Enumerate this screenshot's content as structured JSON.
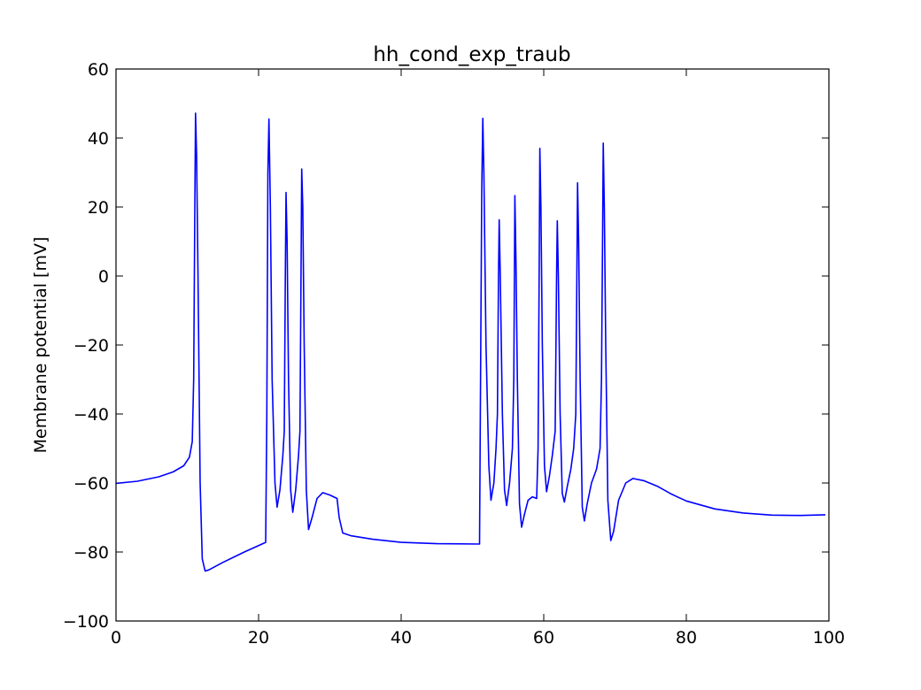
{
  "chart_data": {
    "type": "line",
    "title": "hh_cond_exp_traub",
    "xlabel": "",
    "ylabel": "Membrane potential [mV]",
    "xlim": [
      0,
      100
    ],
    "ylim": [
      -100,
      60
    ],
    "xticks": [
      0,
      20,
      40,
      60,
      80,
      100
    ],
    "yticks": [
      -100,
      -80,
      -60,
      -40,
      -20,
      0,
      20,
      40,
      60
    ],
    "grid": false,
    "line_color": "#0000ff",
    "series": [
      {
        "points": [
          [
            0,
            -60.1
          ],
          [
            3,
            -59.5
          ],
          [
            6,
            -58.2
          ],
          [
            8,
            -56.8
          ],
          [
            9.5,
            -55.0
          ],
          [
            10.3,
            -52.5
          ],
          [
            10.7,
            -48
          ],
          [
            10.9,
            -30
          ],
          [
            11.05,
            20
          ],
          [
            11.15,
            47.2
          ],
          [
            11.3,
            35
          ],
          [
            11.5,
            0
          ],
          [
            11.8,
            -60
          ],
          [
            12.1,
            -82
          ],
          [
            12.5,
            -85.5
          ],
          [
            13,
            -85.2
          ],
          [
            15,
            -83
          ],
          [
            18,
            -80
          ],
          [
            21,
            -77.2
          ],
          [
            21.15,
            -40
          ],
          [
            21.3,
            30
          ],
          [
            21.45,
            45.5
          ],
          [
            21.65,
            20
          ],
          [
            21.9,
            -30
          ],
          [
            22.3,
            -60
          ],
          [
            22.6,
            -67
          ],
          [
            23.0,
            -62
          ],
          [
            23.4,
            -52
          ],
          [
            23.6,
            -45
          ],
          [
            23.75,
            0
          ],
          [
            23.85,
            24.2
          ],
          [
            24.0,
            10
          ],
          [
            24.2,
            -30
          ],
          [
            24.5,
            -62
          ],
          [
            24.8,
            -68.5
          ],
          [
            25.2,
            -62
          ],
          [
            25.6,
            -52
          ],
          [
            25.8,
            -45
          ],
          [
            25.95,
            0
          ],
          [
            26.05,
            31
          ],
          [
            26.2,
            20
          ],
          [
            26.4,
            -20
          ],
          [
            26.7,
            -62
          ],
          [
            27.0,
            -73.5
          ],
          [
            27.5,
            -70
          ],
          [
            28.2,
            -64.5
          ],
          [
            29,
            -62.8
          ],
          [
            30,
            -63.5
          ],
          [
            31.0,
            -64.5
          ],
          [
            31.3,
            -70
          ],
          [
            31.8,
            -74.5
          ],
          [
            33,
            -75.3
          ],
          [
            36,
            -76.3
          ],
          [
            40,
            -77.2
          ],
          [
            45,
            -77.6
          ],
          [
            51,
            -77.7
          ],
          [
            51.1,
            -40
          ],
          [
            51.3,
            25
          ],
          [
            51.45,
            45.7
          ],
          [
            51.6,
            30
          ],
          [
            51.9,
            -20
          ],
          [
            52.3,
            -55
          ],
          [
            52.6,
            -65
          ],
          [
            53.0,
            -60
          ],
          [
            53.3,
            -50
          ],
          [
            53.5,
            -40
          ],
          [
            53.65,
            0
          ],
          [
            53.75,
            16.3
          ],
          [
            53.9,
            0
          ],
          [
            54.2,
            -40
          ],
          [
            54.5,
            -62
          ],
          [
            54.8,
            -66.5
          ],
          [
            55.2,
            -60
          ],
          [
            55.6,
            -50
          ],
          [
            55.8,
            -30
          ],
          [
            55.95,
            23.3
          ],
          [
            56.1,
            5
          ],
          [
            56.3,
            -30
          ],
          [
            56.6,
            -66
          ],
          [
            56.9,
            -72.8
          ],
          [
            57.3,
            -69
          ],
          [
            57.8,
            -65
          ],
          [
            58.4,
            -64
          ],
          [
            59.0,
            -64.5
          ],
          [
            59.2,
            -50
          ],
          [
            59.35,
            0
          ],
          [
            59.45,
            37
          ],
          [
            59.6,
            20
          ],
          [
            59.8,
            -20
          ],
          [
            60.1,
            -55
          ],
          [
            60.4,
            -62.5
          ],
          [
            60.8,
            -58
          ],
          [
            61.2,
            -52
          ],
          [
            61.6,
            -45
          ],
          [
            61.8,
            0
          ],
          [
            61.9,
            16
          ],
          [
            62.05,
            0
          ],
          [
            62.3,
            -40
          ],
          [
            62.6,
            -63
          ],
          [
            62.9,
            -65.5
          ],
          [
            63.3,
            -61
          ],
          [
            63.8,
            -56
          ],
          [
            64.2,
            -50
          ],
          [
            64.5,
            -40
          ],
          [
            64.65,
            0
          ],
          [
            64.75,
            27
          ],
          [
            64.9,
            10
          ],
          [
            65.1,
            -30
          ],
          [
            65.4,
            -67
          ],
          [
            65.7,
            -71
          ],
          [
            66.1,
            -66
          ],
          [
            66.7,
            -60
          ],
          [
            67.4,
            -56
          ],
          [
            67.9,
            -50
          ],
          [
            68.1,
            -30
          ],
          [
            68.25,
            10
          ],
          [
            68.35,
            38.5
          ],
          [
            68.5,
            20
          ],
          [
            68.7,
            -20
          ],
          [
            69.0,
            -65
          ],
          [
            69.4,
            -76.7
          ],
          [
            69.8,
            -74
          ],
          [
            70.5,
            -65
          ],
          [
            71.5,
            -60
          ],
          [
            72.5,
            -58.7
          ],
          [
            74,
            -59.3
          ],
          [
            76,
            -61
          ],
          [
            78,
            -63.3
          ],
          [
            80,
            -65.2
          ],
          [
            84,
            -67.5
          ],
          [
            88,
            -68.7
          ],
          [
            92,
            -69.3
          ],
          [
            96,
            -69.4
          ],
          [
            99.5,
            -69.2
          ]
        ]
      }
    ]
  }
}
